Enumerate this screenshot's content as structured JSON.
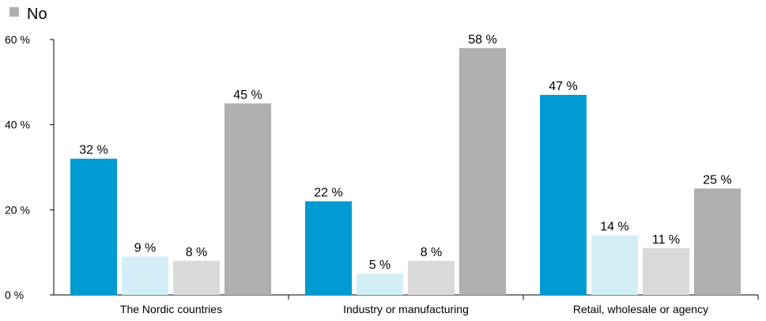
{
  "chart_data": {
    "type": "bar",
    "legend": [
      {
        "label": "No",
        "color": "#afafaf"
      }
    ],
    "categories": [
      "The Nordic countries",
      "Industry or manufacturing",
      "Retail, wholesale or agency"
    ],
    "series": [
      {
        "color": "#009bd2",
        "values": [
          32,
          22,
          47
        ],
        "labels": [
          "32 %",
          "22 %",
          "47 %"
        ]
      },
      {
        "color": "#d4eef8",
        "values": [
          9,
          5,
          14
        ],
        "labels": [
          "9 %",
          "5 %",
          "14 %"
        ]
      },
      {
        "color": "#d9d9d9",
        "values": [
          8,
          8,
          11
        ],
        "labels": [
          "8 %",
          "8 %",
          "11 %"
        ]
      },
      {
        "name": "No",
        "color": "#afafaf",
        "values": [
          45,
          58,
          25
        ],
        "labels": [
          "45 %",
          "58 %",
          "25 %"
        ]
      }
    ],
    "ylim": [
      0,
      60
    ],
    "yticks": [
      0,
      20,
      40,
      60
    ],
    "ytick_labels": [
      "0 %",
      "20 %",
      "40 %",
      "60 %"
    ],
    "grid": false,
    "legend_position": "top-left"
  }
}
